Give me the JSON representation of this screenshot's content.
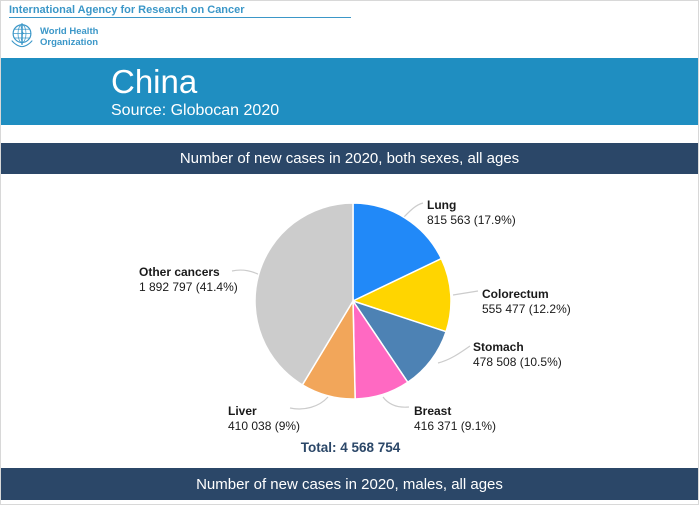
{
  "header": {
    "agency_title": "International Agency for Research on Cancer",
    "who_name_line1": "World Health",
    "who_name_line2": "Organization"
  },
  "title_banner": {
    "country": "China",
    "source": "Source: Globocan 2020"
  },
  "sections": {
    "both_sexes_title": "Number of new cases in 2020, both sexes, all ages",
    "males_title": "Number of new cases in 2020, males, all ages"
  },
  "chart_data": {
    "type": "pie",
    "title": "Number of new cases in 2020, both sexes, all ages",
    "total": 4568754,
    "total_label": "Total: 4 568 754",
    "start_angle_deg": 0,
    "direction": "clockwise",
    "legend_position": "outside-labels",
    "slices": [
      {
        "label": "Lung",
        "value": 815563,
        "percent": 17.9,
        "value_label": "815 563 (17.9%)",
        "color": "#2189F8"
      },
      {
        "label": "Colorectum",
        "value": 555477,
        "percent": 12.2,
        "value_label": "555 477 (12.2%)",
        "color": "#FFD500"
      },
      {
        "label": "Stomach",
        "value": 478508,
        "percent": 10.5,
        "value_label": "478 508 (10.5%)",
        "color": "#4D82B4"
      },
      {
        "label": "Breast",
        "value": 416371,
        "percent": 9.1,
        "value_label": "416 371 (9.1%)",
        "color": "#FF69C2"
      },
      {
        "label": "Liver",
        "value": 410038,
        "percent": 9.0,
        "value_label": "410 038 (9%)",
        "color": "#F2A65A"
      },
      {
        "label": "Other cancers",
        "value": 1892797,
        "percent": 41.4,
        "value_label": "1 892 797 (41.4%)",
        "color": "#CCCCCC"
      }
    ]
  },
  "colors": {
    "header_blue": "#3B97C8",
    "title_banner_bg": "#1F8EC1",
    "section_banner_bg": "#2B4768",
    "leader_line": "#CCCCCC",
    "total_text": "#2B4768"
  }
}
